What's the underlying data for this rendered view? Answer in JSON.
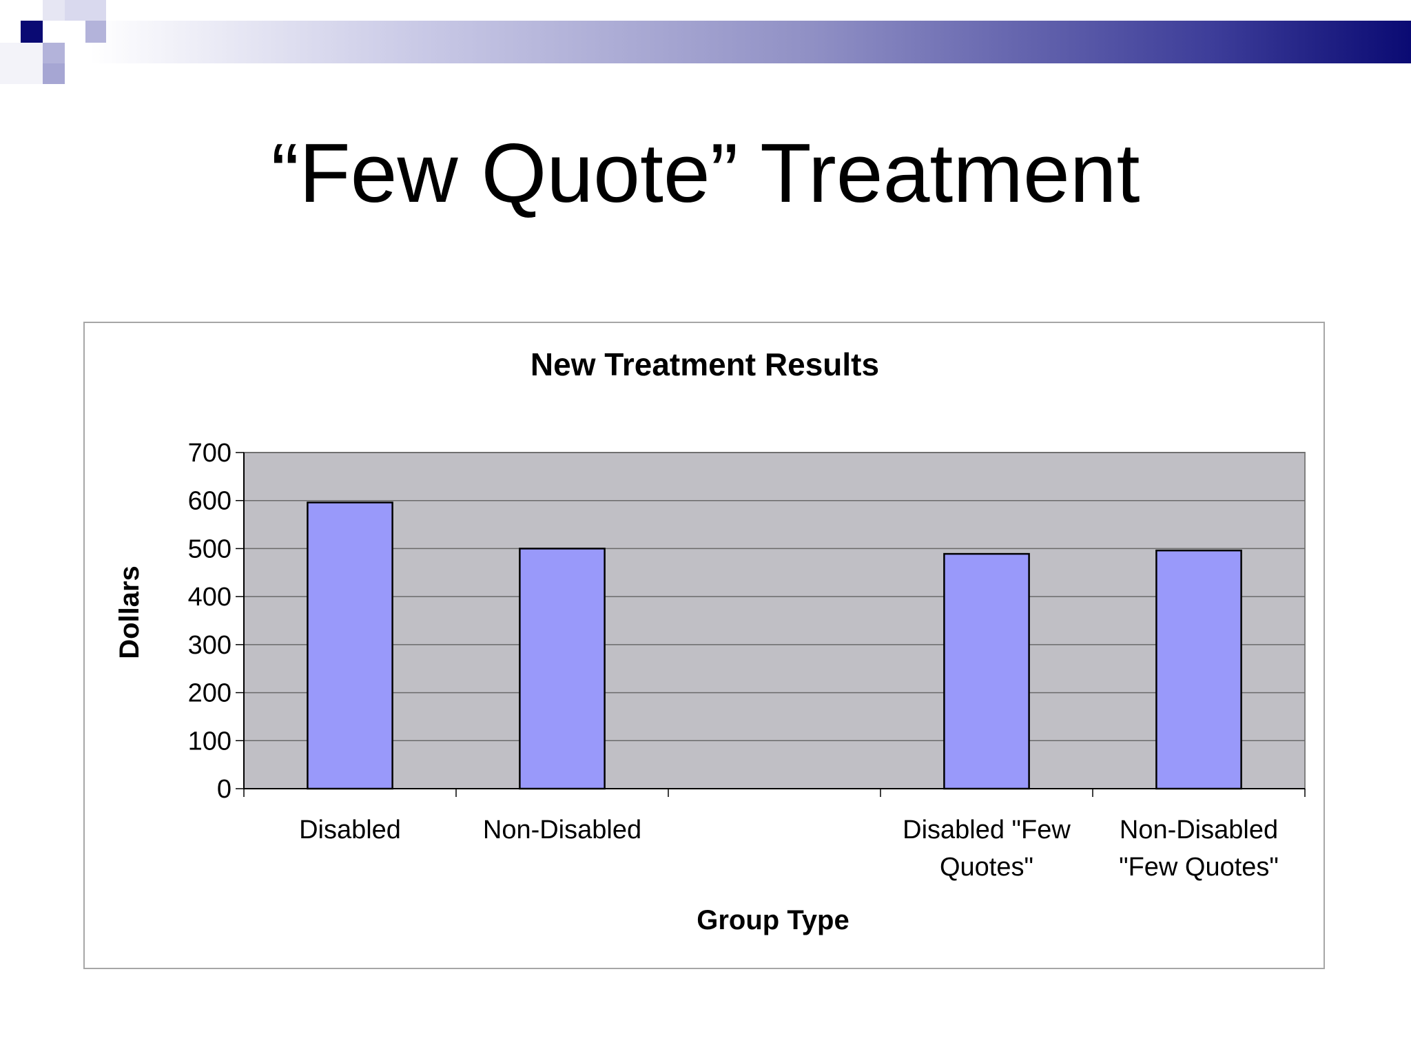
{
  "slide": {
    "title": "“Few Quote” Treatment"
  },
  "colors": {
    "banner_dark": "#0a0a73",
    "banner_mid": "#8f8fc4",
    "plot_bg": "#c0bfc5",
    "bar_fill": "#9999fa",
    "bar_stroke": "#000000",
    "gridline": "#6a6a6a"
  },
  "chart_data": {
    "type": "bar",
    "title": "New Treatment Results",
    "xlabel": "Group Type",
    "ylabel": "Dollars",
    "ylim": [
      0,
      700
    ],
    "yticks": [
      0,
      100,
      200,
      300,
      400,
      500,
      600,
      700
    ],
    "categories": [
      "Disabled",
      "Non-Disabled",
      "",
      "Disabled  \"Few Quotes\"",
      "Non-Disabled \"Few Quotes\""
    ],
    "category_lines": [
      [
        "Disabled"
      ],
      [
        "Non-Disabled"
      ],
      [],
      [
        "Disabled  \"Few",
        "Quotes\""
      ],
      [
        "Non-Disabled",
        "\"Few Quotes\""
      ]
    ],
    "values": [
      596,
      500,
      null,
      489,
      496
    ],
    "grid": true,
    "legend": "none"
  }
}
